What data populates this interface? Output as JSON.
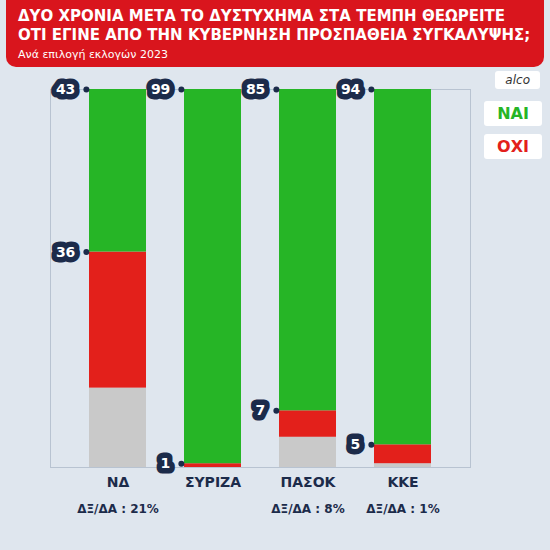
{
  "chart_data": {
    "type": "bar",
    "title": "ΔΥΟ ΧΡΟΝΙΑ ΜΕΤΑ ΤΟ ΔΥΣΤΥΧΗΜΑ ΣΤΑ ΤΕΜΠΗ ΘΕΩΡΕΙΤΕ ΟΤΙ ΕΓΙΝΕ ΑΠΟ ΤΗΝ ΚΥΒΕΡΝΗΣΗ ΠΡΟΣΠΑΘΕΙΑ ΣΥΓΚΑΛΥΨΗΣ;",
    "subtitle": "Ανά επιλογή εκλογών 2023",
    "source": "alco",
    "categories": [
      "ΝΔ",
      "ΣΥΡΙΖΑ",
      "ΠΑΣΟΚ",
      "ΚΚΕ"
    ],
    "series": [
      {
        "name": "ΝΑΙ",
        "color": "#26b526",
        "values": [
          43,
          99,
          85,
          94
        ]
      },
      {
        "name": "ΟΧΙ",
        "color": "#e3201b",
        "values": [
          36,
          1,
          7,
          5
        ]
      }
    ],
    "undecided": {
      "color": "#c9c9c9",
      "values": [
        21,
        null,
        8,
        1
      ],
      "value_labels": [
        "ΔΞ/ΔΑ : 21%",
        null,
        "ΔΞ/ΔΑ : 8%",
        "ΔΞ/ΔΑ : 1%"
      ]
    },
    "stacked": true,
    "data_labels": true,
    "legend": "right",
    "tick_labels": "x",
    "ylim": [
      0,
      100
    ]
  }
}
